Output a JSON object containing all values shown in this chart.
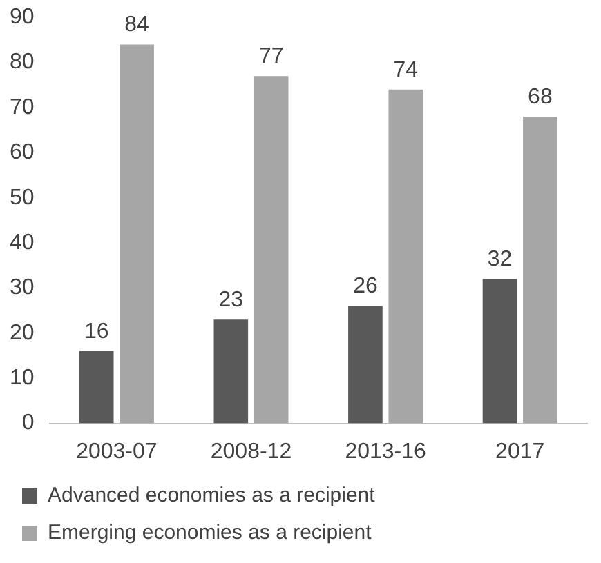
{
  "chart_data": {
    "type": "bar",
    "categories": [
      "2003-07",
      "2008-12",
      "2013-16",
      "2017"
    ],
    "series": [
      {
        "name": "Advanced economies as a recipient",
        "color": "#595959",
        "values": [
          16,
          23,
          26,
          32
        ]
      },
      {
        "name": "Emerging economies as a recipient",
        "color": "#a6a6a6",
        "values": [
          84,
          77,
          74,
          68
        ]
      }
    ],
    "ylim": [
      0,
      90
    ],
    "yticks": [
      0,
      10,
      20,
      30,
      40,
      50,
      60,
      70,
      80,
      90
    ],
    "grid": false,
    "legend": "bottom",
    "data_labels": true
  }
}
